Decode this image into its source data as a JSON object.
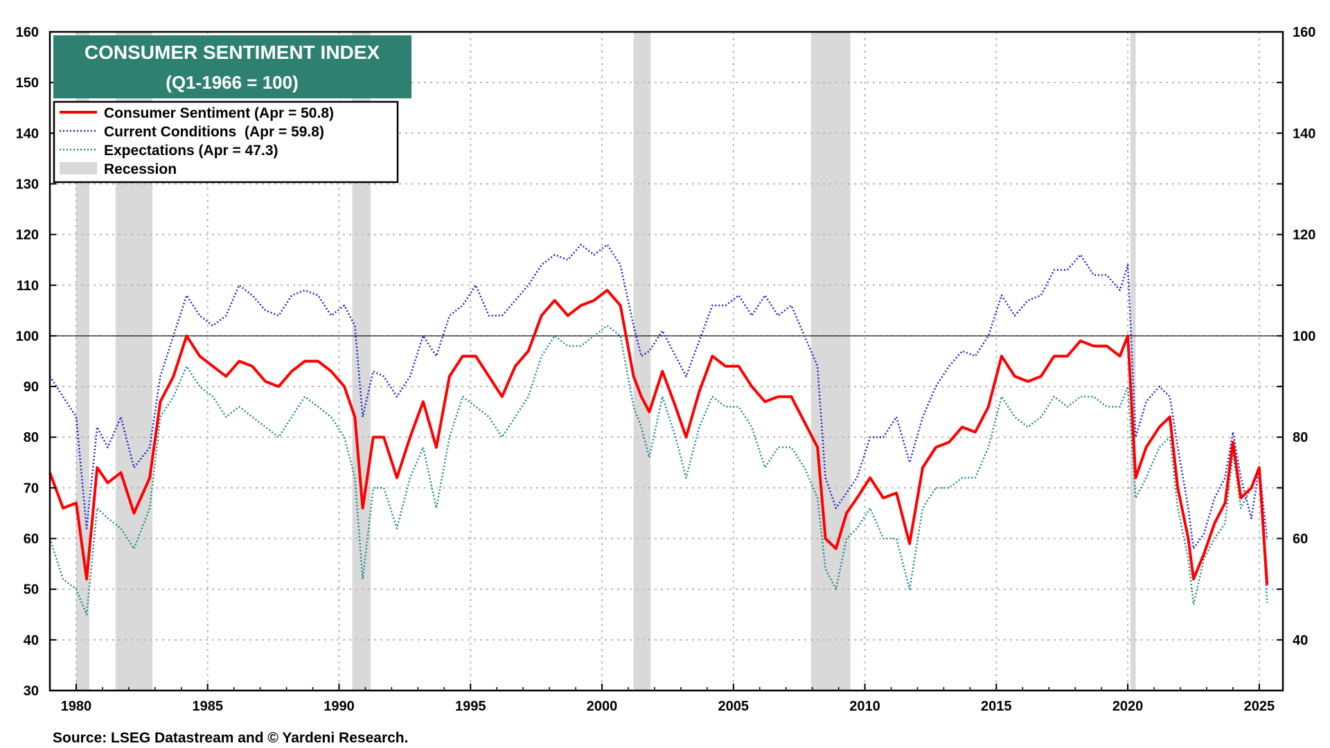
{
  "chart_data": {
    "type": "line",
    "title": "CONSUMER SENTIMENT INDEX",
    "subtitle": "(Q1-1966 = 100)",
    "source": "Source: LSEG Datastream and © Yardeni Research.",
    "xlabel": "",
    "ylabel": "",
    "xlim": [
      1979.0,
      2025.9
    ],
    "ylim": [
      30,
      160
    ],
    "reference_line": 100,
    "x_ticks": [
      1980,
      1985,
      1990,
      1995,
      2000,
      2005,
      2010,
      2015,
      2020,
      2025
    ],
    "x_tick_labels": [
      "1980",
      "1985",
      "1990",
      "1995",
      "2000",
      "2005",
      "2010",
      "2015",
      "2020",
      "2025"
    ],
    "y_ticks": [
      30,
      40,
      50,
      60,
      70,
      80,
      90,
      100,
      110,
      120,
      130,
      140,
      150,
      160
    ],
    "y_tick_labels_left": [
      "30",
      "40",
      "50",
      "60",
      "70",
      "80",
      "90",
      "100",
      "110",
      "120",
      "130",
      "140",
      "150",
      "160"
    ],
    "y_tick_labels_right": [
      "",
      "40",
      "",
      "60",
      "",
      "80",
      "",
      "100",
      "",
      "120",
      "",
      "140",
      "",
      "160"
    ],
    "grid": true,
    "legend_position": "top-left",
    "recessions": [
      [
        1980.0,
        1980.5
      ],
      [
        1981.5,
        1982.9
      ],
      [
        1990.5,
        1991.2
      ],
      [
        2001.2,
        2001.85
      ],
      [
        2007.95,
        2009.45
      ],
      [
        2020.1,
        2020.3
      ]
    ],
    "legend": [
      {
        "label": "Consumer Sentiment (Apr = 50.8)",
        "style": "solid",
        "color": "#ff0000"
      },
      {
        "label": "Current Conditions  (Apr = 59.8)",
        "style": "dotted",
        "color": "#1f1fd0"
      },
      {
        "label": "Expectations (Apr = 47.3)",
        "style": "dotted",
        "color": "#1a8a8a"
      },
      {
        "label": "Recession",
        "style": "band",
        "color": "#d9d9d9"
      }
    ],
    "series": [
      {
        "name": "Consumer Sentiment",
        "color": "#ff0000",
        "style": "solid",
        "x": [
          1979.0,
          1979.5,
          1980.0,
          1980.4,
          1980.8,
          1981.2,
          1981.7,
          1982.2,
          1982.8,
          1983.2,
          1983.7,
          1984.2,
          1984.7,
          1985.2,
          1985.7,
          1986.2,
          1986.7,
          1987.2,
          1987.7,
          1988.2,
          1988.7,
          1989.2,
          1989.7,
          1990.2,
          1990.6,
          1990.9,
          1991.3,
          1991.7,
          1992.2,
          1992.7,
          1993.2,
          1993.7,
          1994.2,
          1994.7,
          1995.2,
          1995.7,
          1996.2,
          1996.7,
          1997.2,
          1997.7,
          1998.2,
          1998.7,
          1999.2,
          1999.7,
          2000.2,
          2000.7,
          2001.2,
          2001.5,
          2001.8,
          2002.3,
          2002.8,
          2003.2,
          2003.7,
          2004.2,
          2004.7,
          2005.2,
          2005.7,
          2006.2,
          2006.7,
          2007.2,
          2007.7,
          2008.2,
          2008.5,
          2008.9,
          2009.3,
          2009.7,
          2010.2,
          2010.7,
          2011.2,
          2011.7,
          2012.2,
          2012.7,
          2013.2,
          2013.7,
          2014.2,
          2014.7,
          2015.2,
          2015.7,
          2016.2,
          2016.7,
          2017.2,
          2017.7,
          2018.2,
          2018.7,
          2019.2,
          2019.7,
          2020.0,
          2020.3,
          2020.7,
          2021.2,
          2021.6,
          2021.9,
          2022.3,
          2022.5,
          2022.9,
          2023.3,
          2023.7,
          2024.0,
          2024.3,
          2024.7,
          2025.0,
          2025.3
        ],
        "values": [
          73.0,
          66.0,
          67.0,
          52.0,
          74.0,
          71.0,
          73.0,
          65.0,
          72.0,
          87.0,
          92.0,
          100.0,
          96.0,
          94.0,
          92.0,
          95.0,
          94.0,
          91.0,
          90.0,
          93.0,
          95.0,
          95.0,
          93.0,
          90.0,
          84.0,
          66.0,
          80.0,
          80.0,
          72.0,
          80.0,
          87.0,
          78.0,
          92.0,
          96.0,
          96.0,
          92.0,
          88.0,
          94.0,
          97.0,
          104.0,
          107.0,
          104.0,
          106.0,
          107.0,
          109.0,
          106.0,
          92.0,
          88.0,
          85.0,
          93.0,
          86.0,
          80.0,
          89.0,
          96.0,
          94.0,
          94.0,
          90.0,
          87.0,
          88.0,
          88.0,
          83.0,
          78.0,
          60.0,
          58.0,
          65.0,
          68.0,
          72.0,
          68.0,
          69.0,
          59.0,
          74.0,
          78.0,
          79.0,
          82.0,
          81.0,
          86.0,
          96.0,
          92.0,
          91.0,
          92.0,
          96.0,
          96.0,
          99.0,
          98.0,
          98.0,
          96.0,
          100.0,
          72.0,
          78.0,
          82.0,
          84.0,
          70.0,
          60.0,
          52.0,
          57.0,
          63.0,
          67.0,
          79.0,
          68.0,
          70.0,
          74.0,
          50.8
        ]
      },
      {
        "name": "Current Conditions",
        "color": "#1f1fd0",
        "style": "dotted",
        "x": [
          1979.0,
          1979.5,
          1980.0,
          1980.4,
          1980.8,
          1981.2,
          1981.7,
          1982.2,
          1982.8,
          1983.2,
          1983.7,
          1984.2,
          1984.7,
          1985.2,
          1985.7,
          1986.2,
          1986.7,
          1987.2,
          1987.7,
          1988.2,
          1988.7,
          1989.2,
          1989.7,
          1990.2,
          1990.6,
          1990.9,
          1991.3,
          1991.7,
          1992.2,
          1992.7,
          1993.2,
          1993.7,
          1994.2,
          1994.7,
          1995.2,
          1995.7,
          1996.2,
          1996.7,
          1997.2,
          1997.7,
          1998.2,
          1998.7,
          1999.2,
          1999.7,
          2000.2,
          2000.7,
          2001.2,
          2001.5,
          2001.8,
          2002.3,
          2002.8,
          2003.2,
          2003.7,
          2004.2,
          2004.7,
          2005.2,
          2005.7,
          2006.2,
          2006.7,
          2007.2,
          2007.7,
          2008.2,
          2008.5,
          2008.9,
          2009.3,
          2009.7,
          2010.2,
          2010.7,
          2011.2,
          2011.7,
          2012.2,
          2012.7,
          2013.2,
          2013.7,
          2014.2,
          2014.7,
          2015.2,
          2015.7,
          2016.2,
          2016.7,
          2017.2,
          2017.7,
          2018.2,
          2018.7,
          2019.2,
          2019.7,
          2020.0,
          2020.3,
          2020.7,
          2021.2,
          2021.6,
          2021.9,
          2022.3,
          2022.5,
          2022.9,
          2023.3,
          2023.7,
          2024.0,
          2024.3,
          2024.7,
          2025.0,
          2025.3
        ],
        "values": [
          92.0,
          88.0,
          84.0,
          62.0,
          82.0,
          78.0,
          84.0,
          74.0,
          78.0,
          92.0,
          100.0,
          108.0,
          104.0,
          102.0,
          104.0,
          110.0,
          108.0,
          105.0,
          104.0,
          108.0,
          109.0,
          108.0,
          104.0,
          106.0,
          102.0,
          84.0,
          93.0,
          92.0,
          88.0,
          92.0,
          100.0,
          96.0,
          104.0,
          106.0,
          110.0,
          104.0,
          104.0,
          107.0,
          110.0,
          114.0,
          116.0,
          115.0,
          118.0,
          116.0,
          118.0,
          114.0,
          102.0,
          96.0,
          97.0,
          101.0,
          96.0,
          92.0,
          99.0,
          106.0,
          106.0,
          108.0,
          104.0,
          108.0,
          104.0,
          106.0,
          100.0,
          94.0,
          72.0,
          66.0,
          69.0,
          72.0,
          80.0,
          80.0,
          84.0,
          75.0,
          84.0,
          90.0,
          94.0,
          97.0,
          96.0,
          100.0,
          108.0,
          104.0,
          107.0,
          108.0,
          113.0,
          113.0,
          116.0,
          112.0,
          112.0,
          109.0,
          114.0,
          80.0,
          87.0,
          90.0,
          88.0,
          78.0,
          66.0,
          58.0,
          61.0,
          68.0,
          72.0,
          81.0,
          72.0,
          64.0,
          74.0,
          59.8
        ]
      },
      {
        "name": "Expectations",
        "color": "#1a8a8a",
        "style": "dotted",
        "x": [
          1979.0,
          1979.5,
          1980.0,
          1980.4,
          1980.8,
          1981.2,
          1981.7,
          1982.2,
          1982.8,
          1983.2,
          1983.7,
          1984.2,
          1984.7,
          1985.2,
          1985.7,
          1986.2,
          1986.7,
          1987.2,
          1987.7,
          1988.2,
          1988.7,
          1989.2,
          1989.7,
          1990.2,
          1990.6,
          1990.9,
          1991.3,
          1991.7,
          1992.2,
          1992.7,
          1993.2,
          1993.7,
          1994.2,
          1994.7,
          1995.2,
          1995.7,
          1996.2,
          1996.7,
          1997.2,
          1997.7,
          1998.2,
          1998.7,
          1999.2,
          1999.7,
          2000.2,
          2000.7,
          2001.2,
          2001.5,
          2001.8,
          2002.3,
          2002.8,
          2003.2,
          2003.7,
          2004.2,
          2004.7,
          2005.2,
          2005.7,
          2006.2,
          2006.7,
          2007.2,
          2007.7,
          2008.2,
          2008.5,
          2008.9,
          2009.3,
          2009.7,
          2010.2,
          2010.7,
          2011.2,
          2011.7,
          2012.2,
          2012.7,
          2013.2,
          2013.7,
          2014.2,
          2014.7,
          2015.2,
          2015.7,
          2016.2,
          2016.7,
          2017.2,
          2017.7,
          2018.2,
          2018.7,
          2019.2,
          2019.7,
          2020.0,
          2020.3,
          2020.7,
          2021.2,
          2021.6,
          2021.9,
          2022.3,
          2022.5,
          2022.9,
          2023.3,
          2023.7,
          2024.0,
          2024.3,
          2024.7,
          2025.0,
          2025.3
        ],
        "values": [
          60.0,
          52.0,
          50.0,
          45.0,
          66.0,
          64.0,
          62.0,
          58.0,
          66.0,
          84.0,
          88.0,
          94.0,
          90.0,
          88.0,
          84.0,
          86.0,
          84.0,
          82.0,
          80.0,
          84.0,
          88.0,
          86.0,
          84.0,
          80.0,
          72.0,
          52.0,
          70.0,
          70.0,
          62.0,
          72.0,
          78.0,
          66.0,
          80.0,
          88.0,
          86.0,
          84.0,
          80.0,
          84.0,
          88.0,
          96.0,
          100.0,
          98.0,
          98.0,
          100.0,
          102.0,
          100.0,
          86.0,
          82.0,
          76.0,
          88.0,
          80.0,
          72.0,
          82.0,
          88.0,
          86.0,
          86.0,
          82.0,
          74.0,
          78.0,
          78.0,
          74.0,
          68.0,
          54.0,
          50.0,
          60.0,
          62.0,
          66.0,
          60.0,
          60.0,
          50.0,
          66.0,
          70.0,
          70.0,
          72.0,
          72.0,
          78.0,
          88.0,
          84.0,
          82.0,
          84.0,
          88.0,
          86.0,
          88.0,
          88.0,
          86.0,
          86.0,
          90.0,
          68.0,
          72.0,
          78.0,
          80.0,
          66.0,
          56.0,
          47.0,
          56.0,
          60.0,
          63.0,
          77.0,
          66.0,
          70.0,
          74.0,
          47.3
        ]
      }
    ]
  }
}
